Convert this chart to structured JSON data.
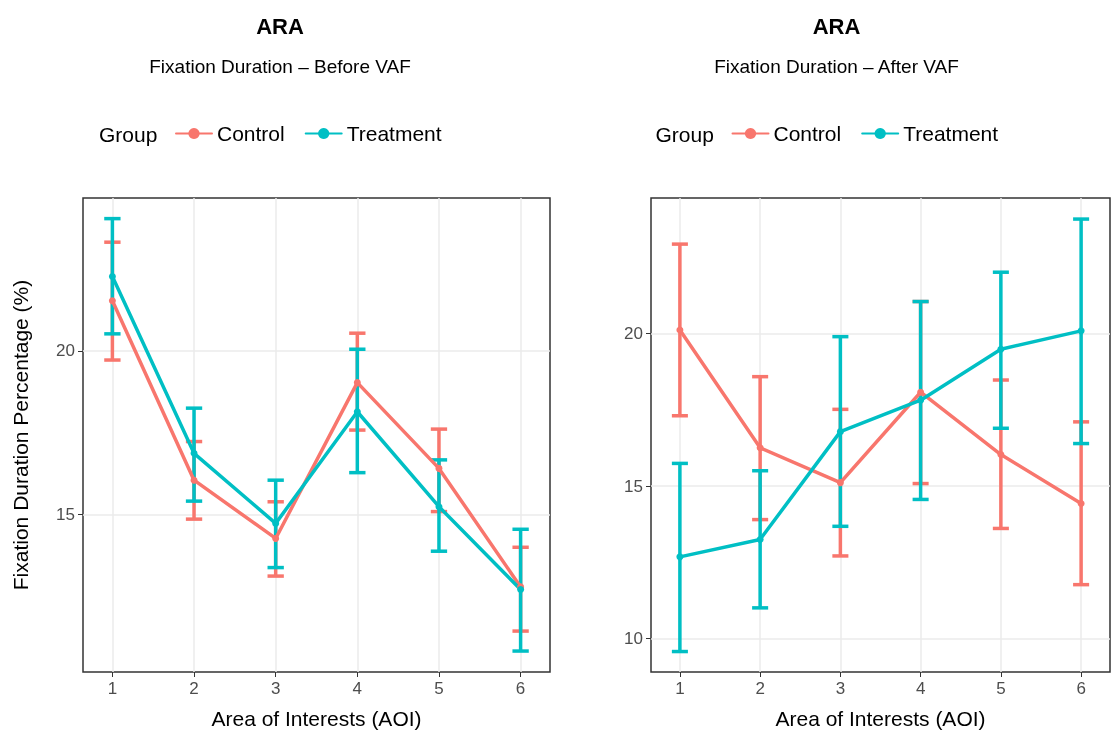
{
  "chart_data": [
    {
      "type": "line",
      "title": "ARA",
      "subtitle": "Fixation Duration – Before VAF",
      "xlabel": "Area of Interests (AOI)",
      "ylabel": "Fixation Duration Percentage (%)",
      "legend_title": "Group",
      "legend": "top",
      "marker": "circle",
      "line_style": "solid",
      "grid": true,
      "x": [
        1,
        2,
        3,
        4,
        5,
        6
      ],
      "xlim": [
        0.64,
        6.36
      ],
      "xticks": [
        1,
        2,
        3,
        4,
        5,
        6
      ],
      "ylim": [
        10.19,
        24.67
      ],
      "yticks": [
        15,
        20
      ],
      "series": [
        {
          "name": "Control",
          "color": "#f8766d",
          "values": [
            21.53,
            16.05,
            14.27,
            19.03,
            16.41,
            12.79
          ],
          "errors": [
            [
              19.72,
              23.32
            ],
            [
              14.86,
              17.23
            ],
            [
              13.12,
              15.39
            ],
            [
              17.58,
              20.54
            ],
            [
              15.09,
              17.61
            ],
            [
              11.44,
              14.0
            ]
          ]
        },
        {
          "name": "Treatment",
          "color": "#00bfc4",
          "values": [
            22.27,
            16.87,
            14.73,
            18.14,
            15.24,
            12.71
          ],
          "errors": [
            [
              20.52,
              24.04
            ],
            [
              15.41,
              18.25
            ],
            [
              13.38,
              16.05
            ],
            [
              16.28,
              20.05
            ],
            [
              13.88,
              16.67
            ],
            [
              10.83,
              14.55
            ]
          ]
        }
      ]
    },
    {
      "type": "line",
      "title": "ARA",
      "subtitle": "Fixation Duration – After VAF",
      "xlabel": "Area of Interests (AOI)",
      "legend_title": "Group",
      "legend": "top",
      "marker": "circle",
      "line_style": "solid",
      "grid": true,
      "x": [
        1,
        2,
        3,
        4,
        5,
        6
      ],
      "xlim": [
        0.64,
        6.36
      ],
      "xticks": [
        1,
        2,
        3,
        4,
        5,
        6
      ],
      "ylim": [
        8.91,
        24.43
      ],
      "yticks": [
        10,
        15,
        20
      ],
      "series": [
        {
          "name": "Control",
          "color": "#f8766d",
          "values": [
            20.11,
            16.25,
            15.11,
            18.07,
            16.03,
            14.43
          ],
          "errors": [
            [
              17.3,
              22.92
            ],
            [
              13.9,
              18.58
            ],
            [
              12.71,
              17.51
            ],
            [
              15.08,
              21.04
            ],
            [
              13.61,
              18.47
            ],
            [
              11.77,
              17.1
            ]
          ]
        },
        {
          "name": "Treatment",
          "color": "#00bfc4",
          "values": [
            12.68,
            13.25,
            16.78,
            17.81,
            19.48,
            20.08
          ],
          "errors": [
            [
              9.58,
              15.74
            ],
            [
              11.01,
              15.5
            ],
            [
              13.68,
              19.89
            ],
            [
              14.56,
              21.04
            ],
            [
              16.89,
              22.0
            ],
            [
              16.39,
              23.74
            ]
          ]
        }
      ]
    }
  ]
}
